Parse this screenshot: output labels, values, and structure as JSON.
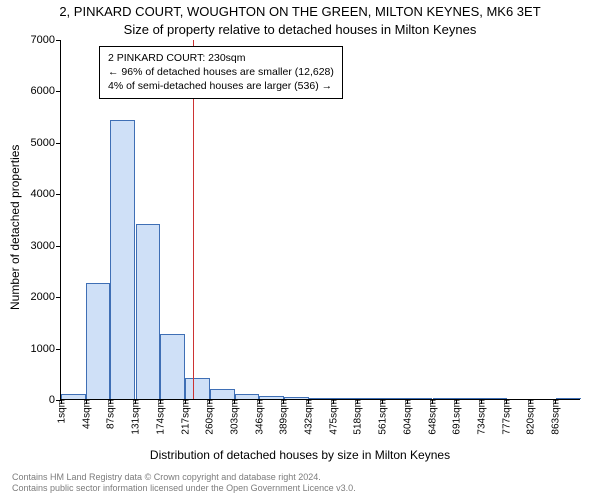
{
  "title_line1": "2, PINKARD COURT, WOUGHTON ON THE GREEN, MILTON KEYNES, MK6 3ET",
  "title_line2": "Size of property relative to detached houses in Milton Keynes",
  "ylabel": "Number of detached properties",
  "xlabel": "Distribution of detached houses by size in Milton Keynes",
  "footer_line1": "Contains HM Land Registry data © Crown copyright and database right 2024.",
  "footer_line2": "Contains public sector information licensed under the Open Government Licence v3.0.",
  "chart": {
    "type": "histogram",
    "ylim": [
      0,
      7000
    ],
    "yticks": [
      0,
      1000,
      2000,
      3000,
      4000,
      5000,
      6000,
      7000
    ],
    "x_tick_labels": [
      "1sqm",
      "44sqm",
      "87sqm",
      "131sqm",
      "174sqm",
      "217sqm",
      "260sqm",
      "303sqm",
      "346sqm",
      "389sqm",
      "432sqm",
      "475sqm",
      "518sqm",
      "561sqm",
      "604sqm",
      "648sqm",
      "691sqm",
      "734sqm",
      "777sqm",
      "820sqm",
      "863sqm"
    ],
    "x_tick_step_sqm": 43,
    "x_min_sqm": 1,
    "x_max_sqm": 906,
    "bars": [
      {
        "left_sqm": 1,
        "count": 90
      },
      {
        "left_sqm": 44,
        "count": 2250
      },
      {
        "left_sqm": 87,
        "count": 5430
      },
      {
        "left_sqm": 131,
        "count": 3400
      },
      {
        "left_sqm": 174,
        "count": 1270
      },
      {
        "left_sqm": 217,
        "count": 400
      },
      {
        "left_sqm": 260,
        "count": 190
      },
      {
        "left_sqm": 303,
        "count": 100
      },
      {
        "left_sqm": 346,
        "count": 60
      },
      {
        "left_sqm": 389,
        "count": 40
      },
      {
        "left_sqm": 432,
        "count": 25
      },
      {
        "left_sqm": 475,
        "count": 10
      },
      {
        "left_sqm": 518,
        "count": 5
      },
      {
        "left_sqm": 561,
        "count": 3
      },
      {
        "left_sqm": 604,
        "count": 2
      },
      {
        "left_sqm": 648,
        "count": 1
      },
      {
        "left_sqm": 691,
        "count": 1
      },
      {
        "left_sqm": 734,
        "count": 1
      },
      {
        "left_sqm": 777,
        "count": 0
      },
      {
        "left_sqm": 820,
        "count": 0
      },
      {
        "left_sqm": 863,
        "count": 1
      }
    ],
    "bar_fill": "#cfe0f7",
    "bar_stroke": "#3f6fb5",
    "bar_stroke_width": 1,
    "refline_sqm": 230,
    "refline_color": "#cc3333",
    "refline_width": 1,
    "background": "#ffffff",
    "axis_color": "#000000",
    "tick_fontsize": 11,
    "xtick_fontsize": 10,
    "label_fontsize": 12,
    "title_fontsize": 13
  },
  "annotation": {
    "line1": "2 PINKARD COURT: 230sqm",
    "line2": "← 96% of detached houses are smaller (12,628)",
    "line3": "4% of semi-detached houses are larger (536) →",
    "border_color": "#000000",
    "background": "#ffffff",
    "fontsize": 10.5
  },
  "colors": {
    "text": "#000000",
    "footer": "#7c7c7c"
  }
}
